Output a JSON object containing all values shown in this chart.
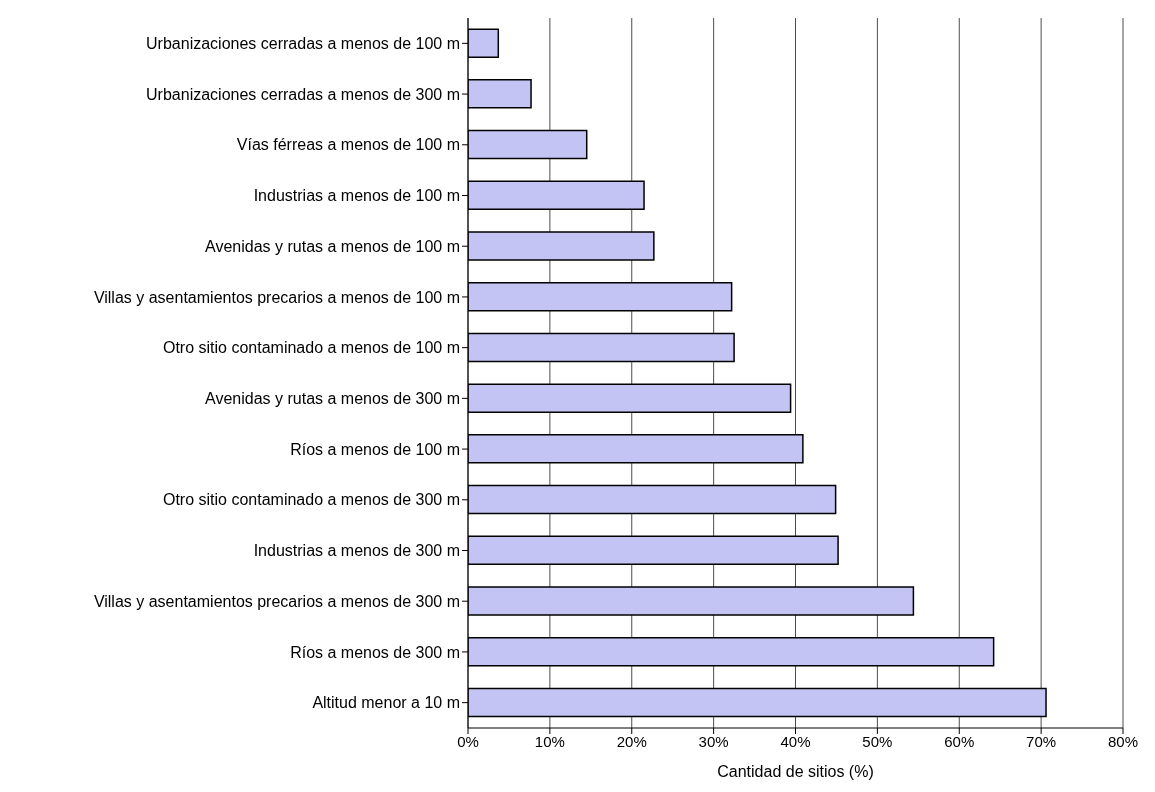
{
  "chart_data": {
    "type": "bar",
    "orientation": "horizontal",
    "xlabel": "Cantidad de sitios (%)",
    "categories": [
      "Urbanizaciones cerradas a menos de 100 m",
      "Urbanizaciones cerradas a menos de 300 m",
      "Vías férreas a menos de 100 m",
      "Industrias a menos de 100 m",
      "Avenidas y rutas a menos de 100 m",
      "Villas y asentamientos precarios a menos de 100 m",
      "Otro sitio contaminado a menos de 100 m",
      "Avenidas y rutas a menos de 300 m",
      "Ríos a menos de 100 m",
      "Otro sitio contaminado a menos de 300 m",
      "Industrias a menos de 300 m",
      "Villas y asentamientos precarios a menos de 300 m",
      "Ríos a menos de 300 m",
      "Altitud menor a 10 m"
    ],
    "values": [
      3.7,
      7.7,
      14.5,
      21.5,
      22.7,
      32.2,
      32.5,
      39.4,
      40.9,
      44.9,
      45.2,
      54.4,
      64.2,
      70.6
    ],
    "color": "#c4c4f4",
    "xlim": [
      0,
      80
    ],
    "xticks": [
      {
        "value": 0,
        "label": "0%"
      },
      {
        "value": 10,
        "label": "10%"
      },
      {
        "value": 20,
        "label": "20%"
      },
      {
        "value": 30,
        "label": "30%"
      },
      {
        "value": 40,
        "label": "40%"
      },
      {
        "value": 50,
        "label": "50%"
      },
      {
        "value": 60,
        "label": "60%"
      },
      {
        "value": 70,
        "label": "70%"
      },
      {
        "value": 80,
        "label": "80%"
      }
    ],
    "grid": "x",
    "legend": false
  }
}
